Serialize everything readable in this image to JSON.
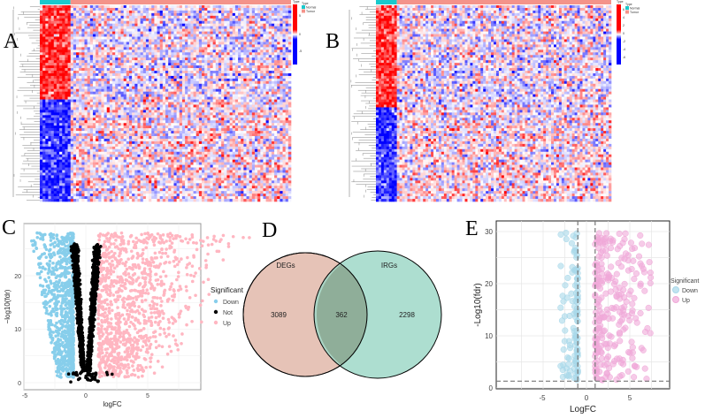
{
  "panels": {
    "a": "A",
    "b": "B",
    "c": "C",
    "d": "D",
    "e": "E"
  },
  "colors": {
    "high": "#ff0000",
    "mid": "#ffffff",
    "low": "#0000ff",
    "normal": "#19c9cc",
    "tumor": "#f4938a",
    "down": "#87ceeb",
    "not": "#000000",
    "up": "#ffb6c1",
    "deg": "#e6c3b7",
    "irg": "#9fd8c8",
    "e_down": "#a8d8ea",
    "e_up": "#f0a8d8"
  },
  "chart_data": [
    {
      "panel": "A",
      "type": "heatmap",
      "legend_title": "Type",
      "legend": [
        "Normal",
        "Tumor"
      ],
      "scale_ticks": [
        "5",
        "0",
        "-5"
      ],
      "scale_range": [
        -5,
        5
      ]
    },
    {
      "panel": "B",
      "type": "heatmap",
      "legend_title": "Type",
      "legend": [
        "Normal",
        "Tumor"
      ],
      "scale_ticks": [
        "6",
        "4",
        "2",
        "0",
        "-2",
        "-4",
        "-6"
      ],
      "scale_range": [
        -6,
        6
      ]
    },
    {
      "panel": "C",
      "type": "scatter",
      "xlabel": "logFC",
      "ylabel": "−log10(fdr)",
      "xlim": [
        -5,
        9
      ],
      "ylim": [
        -1,
        29
      ],
      "xticks": [
        "-5",
        "0",
        "5"
      ],
      "yticks": [
        "0",
        "10",
        "20"
      ],
      "legend_title": "Significant",
      "series": [
        {
          "name": "Down"
        },
        {
          "name": "Not"
        },
        {
          "name": "Up"
        }
      ],
      "logfc_threshold": 1,
      "grid": true,
      "legend_position": "right"
    },
    {
      "panel": "D",
      "type": "venn",
      "sets": [
        {
          "name": "DEGs",
          "only": "3089"
        },
        {
          "name": "IRGs",
          "only": "2298"
        }
      ],
      "intersection": "362"
    },
    {
      "panel": "E",
      "type": "scatter",
      "xlabel": "LogFC",
      "ylabel": "-Log10(fdr)",
      "xlim": [
        -9,
        9
      ],
      "ylim": [
        -0.5,
        32
      ],
      "xticks": [
        "-5",
        "0",
        "5"
      ],
      "yticks": [
        "0",
        "10",
        "20",
        "30"
      ],
      "legend_title": "Significant",
      "series": [
        {
          "name": "Down"
        },
        {
          "name": "Up"
        }
      ],
      "vlines": [
        -1,
        1
      ],
      "hline": 1.3,
      "grid": true,
      "legend_position": "right"
    }
  ]
}
